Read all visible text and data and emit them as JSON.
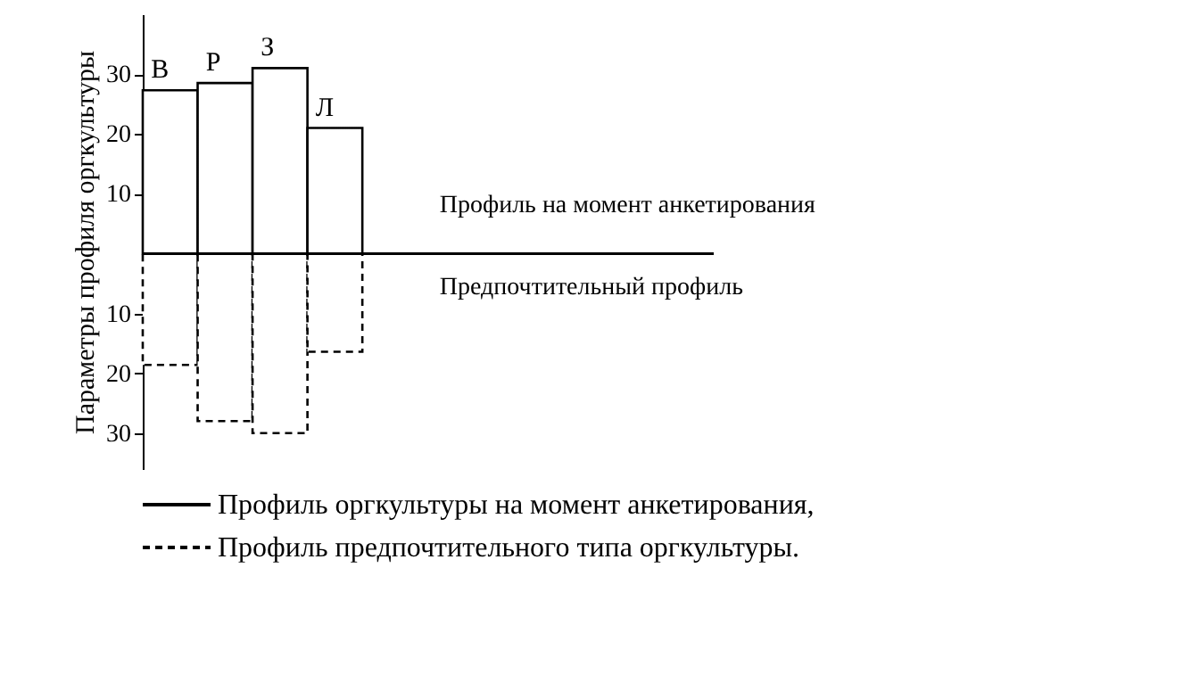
{
  "chart_data": {
    "type": "bar",
    "categories": [
      "В",
      "Р",
      "З",
      "Л"
    ],
    "ylabel": "Параметры профиля оргкультуры",
    "series": [
      {
        "name": "Профиль оргкультуры на момент анкетирования,",
        "color": "#000000",
        "line_style": "solid",
        "values": [
          27.3,
          28.5,
          31,
          21
        ]
      },
      {
        "name": "Профиль предпочтительного типа оргкультуры.",
        "color": "#000000",
        "line_style": "dashed",
        "values": [
          -18.6,
          -28,
          -30,
          -16.4
        ]
      }
    ],
    "annotations": [
      "Профиль на момент анкетирования",
      "Предпочтительный профиль"
    ],
    "ylim": [
      -36,
      40
    ],
    "yticks": [
      {
        "value": -30,
        "label": "30"
      },
      {
        "value": -20,
        "label": "20"
      },
      {
        "value": -10,
        "label": "10"
      },
      10,
      20,
      30
    ],
    "stacked": true,
    "grid": false,
    "legend": "bottom"
  }
}
